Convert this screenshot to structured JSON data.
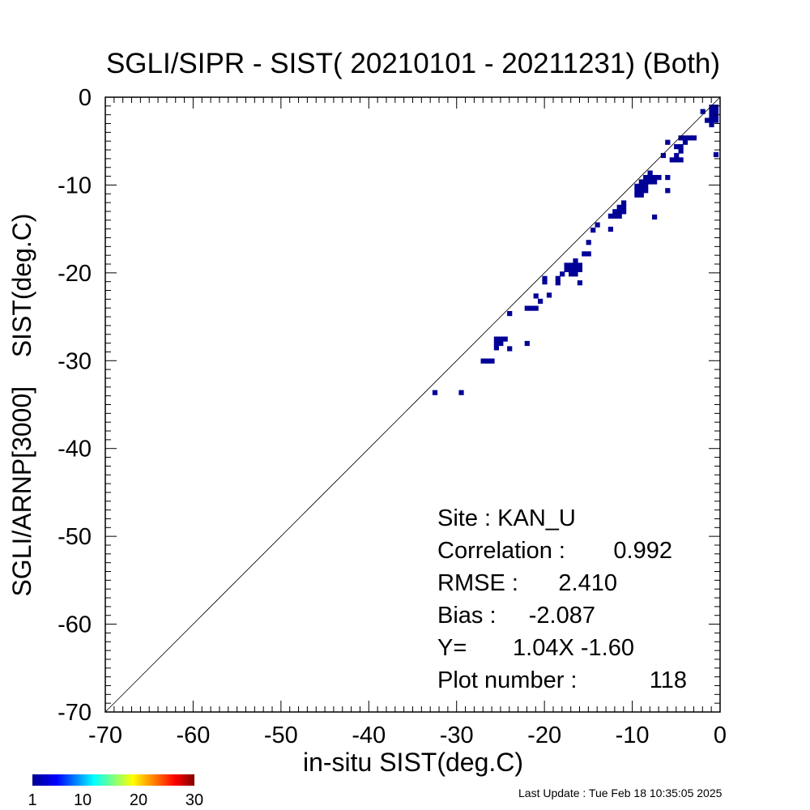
{
  "chart_data": {
    "type": "heatmap",
    "title": "SGLI/SIPR - SIST( 20210101 - 20211231) (Both)",
    "xlabel": "in-situ SIST(deg.C)",
    "ylabel": "SGLI/ARNP[3000]    SIST(deg.C)",
    "xlim": [
      -70,
      0
    ],
    "ylim": [
      -70,
      0
    ],
    "xticks": [
      -70,
      -60,
      -50,
      -40,
      -30,
      -20,
      -10,
      0
    ],
    "yticks": [
      -70,
      -60,
      -50,
      -40,
      -30,
      -20,
      -10,
      0
    ],
    "xtick_labels": [
      "-70",
      "-60",
      "-50",
      "-40",
      "-30",
      "-20",
      "-10",
      "0"
    ],
    "ytick_labels": [
      "-70",
      "-60",
      "-50",
      "-40",
      "-30",
      "-20",
      "-10",
      "0"
    ],
    "reference_line": "1:1",
    "cell_size": 0.5,
    "cells": [
      [
        -32.5,
        -33.6
      ],
      [
        -29.5,
        -33.6
      ],
      [
        -27.0,
        -30.0
      ],
      [
        -26.5,
        -30.0
      ],
      [
        -26.0,
        -30.0
      ],
      [
        -25.5,
        -28.5
      ],
      [
        -25.5,
        -28.0
      ],
      [
        -25.5,
        -27.5
      ],
      [
        -25.0,
        -28.0
      ],
      [
        -25.0,
        -27.5
      ],
      [
        -24.5,
        -27.5
      ],
      [
        -24.0,
        -28.6
      ],
      [
        -24.0,
        -24.6
      ],
      [
        -22.0,
        -28.0
      ],
      [
        -22.0,
        -24.0
      ],
      [
        -21.5,
        -24.0
      ],
      [
        -21.0,
        -24.0
      ],
      [
        -21.0,
        -22.6
      ],
      [
        -20.5,
        -23.2
      ],
      [
        -19.5,
        -22.5
      ],
      [
        -20.0,
        -21.0
      ],
      [
        -20.0,
        -20.6
      ],
      [
        -18.5,
        -21.1
      ],
      [
        -18.5,
        -20.6
      ],
      [
        -18.0,
        -20.1
      ],
      [
        -17.5,
        -19.6
      ],
      [
        -17.5,
        -19.1
      ],
      [
        -17.0,
        -20.1
      ],
      [
        -17.0,
        -19.6
      ],
      [
        -17.0,
        -19.1
      ],
      [
        -16.5,
        -20.1
      ],
      [
        -16.5,
        -19.6
      ],
      [
        -16.5,
        -19.1
      ],
      [
        -16.5,
        -18.6
      ],
      [
        -16.0,
        -21.1
      ],
      [
        -16.0,
        -19.6
      ],
      [
        -16.0,
        -19.1
      ],
      [
        -15.5,
        -17.8
      ],
      [
        -15.0,
        -17.8
      ],
      [
        -15.0,
        -16.5
      ],
      [
        -14.5,
        -15.1
      ],
      [
        -14.0,
        -14.5
      ],
      [
        -12.5,
        -15.0
      ],
      [
        -12.5,
        -13.5
      ],
      [
        -12.0,
        -13.5
      ],
      [
        -12.0,
        -13.0
      ],
      [
        -11.5,
        -13.5
      ],
      [
        -11.5,
        -13.0
      ],
      [
        -11.5,
        -12.5
      ],
      [
        -11.0,
        -13.0
      ],
      [
        -11.0,
        -12.5
      ],
      [
        -11.0,
        -12.0
      ],
      [
        -9.5,
        -11.1
      ],
      [
        -9.5,
        -10.6
      ],
      [
        -9.5,
        -10.1
      ],
      [
        -9.0,
        -11.1
      ],
      [
        -9.0,
        -10.6
      ],
      [
        -9.0,
        -10.1
      ],
      [
        -9.0,
        -9.6
      ],
      [
        -8.5,
        -10.6
      ],
      [
        -8.5,
        -10.1
      ],
      [
        -8.5,
        -9.6
      ],
      [
        -8.5,
        -9.1
      ],
      [
        -8.0,
        -9.6
      ],
      [
        -8.0,
        -9.1
      ],
      [
        -8.0,
        -8.6
      ],
      [
        -7.5,
        -9.6
      ],
      [
        -7.5,
        -9.1
      ],
      [
        -7.5,
        -13.6
      ],
      [
        -7.0,
        -9.1
      ],
      [
        -6.5,
        -6.6
      ],
      [
        -6.0,
        -10.6
      ],
      [
        -6.0,
        -9.1
      ],
      [
        -6.0,
        -5.1
      ],
      [
        -5.5,
        -7.1
      ],
      [
        -5.0,
        -7.1
      ],
      [
        -5.0,
        -6.6
      ],
      [
        -5.0,
        -5.6
      ],
      [
        -4.5,
        -7.1
      ],
      [
        -4.5,
        -6.1
      ],
      [
        -4.5,
        -5.6
      ],
      [
        -4.5,
        -4.6
      ],
      [
        -4.0,
        -5.1
      ],
      [
        -4.0,
        -4.6
      ],
      [
        -3.5,
        -4.6
      ],
      [
        -3.0,
        -4.6
      ],
      [
        -2.0,
        -1.6
      ],
      [
        -1.5,
        -2.6
      ],
      [
        -1.0,
        -3.1
      ],
      [
        -1.0,
        -2.6
      ],
      [
        -0.5,
        -6.5
      ],
      [
        -0.5,
        -2.6
      ],
      [
        -0.5,
        -2.1
      ],
      [
        -0.5,
        -1.6
      ],
      [
        -0.5,
        -1.1
      ],
      [
        -1.0,
        -1.6
      ],
      [
        -1.0,
        -1.1
      ],
      [
        -1.0,
        -2.1
      ]
    ],
    "colorbar": {
      "min": 1,
      "max": 30,
      "tick_labels": [
        "1",
        "10",
        "20",
        "30"
      ],
      "colors": [
        "#00008f",
        "#0000ff",
        "#00ffff",
        "#ffff00",
        "#ff0000",
        "#800000"
      ]
    },
    "stats": [
      {
        "label": "Site : KAN_U",
        "value": ""
      },
      {
        "label": "Correlation :",
        "value": "0.992"
      },
      {
        "label": "RMSE :",
        "value": "2.410"
      },
      {
        "label": "Bias :",
        "value": "-2.087"
      },
      {
        "label": "Y=",
        "value": "1.04X  -1.60"
      },
      {
        "label": "Plot number :",
        "value": "118"
      }
    ]
  },
  "footer": {
    "last_update": "Last Update : Tue Feb 18 10:35:05 2025"
  },
  "colors": {
    "cell": "#000096",
    "axis": "#000000",
    "reference_line": "#000000"
  }
}
